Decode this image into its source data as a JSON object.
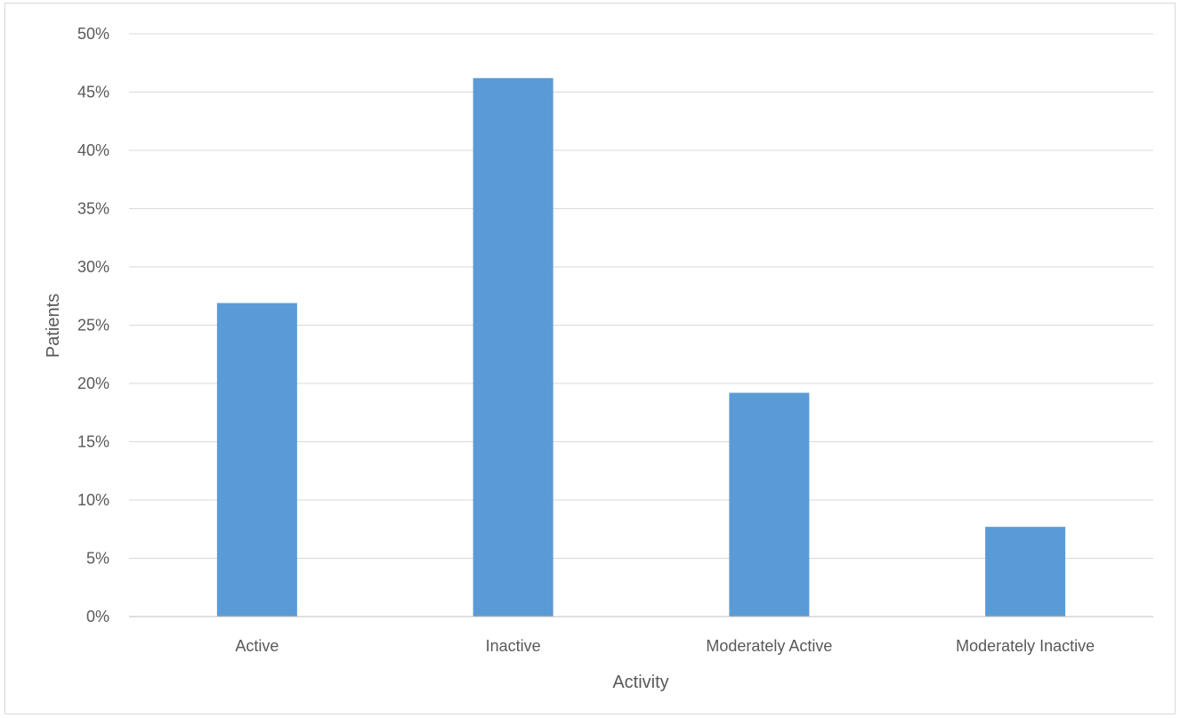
{
  "chart_data": {
    "type": "bar",
    "title": "",
    "xlabel": "Activity",
    "ylabel": "Patients",
    "categories": [
      "Active",
      "Inactive",
      "Moderately Active",
      "Moderately Inactive"
    ],
    "series": [
      {
        "values": [
          26.9,
          46.2,
          19.2,
          7.7
        ]
      }
    ],
    "ylim": [
      0,
      50
    ],
    "yticks": [
      0,
      5,
      10,
      15,
      20,
      25,
      30,
      35,
      40,
      45,
      50
    ],
    "ytick_labels": [
      "0%",
      "5%",
      "10%",
      "15%",
      "20%",
      "25%",
      "30%",
      "35%",
      "40%",
      "45%",
      "50%"
    ],
    "grid": true,
    "legend": "none",
    "colors": {
      "bar": "#5b9bd5",
      "grid": "#d9d9d9",
      "axis": "#bfbfbf",
      "text": "#595959"
    }
  }
}
